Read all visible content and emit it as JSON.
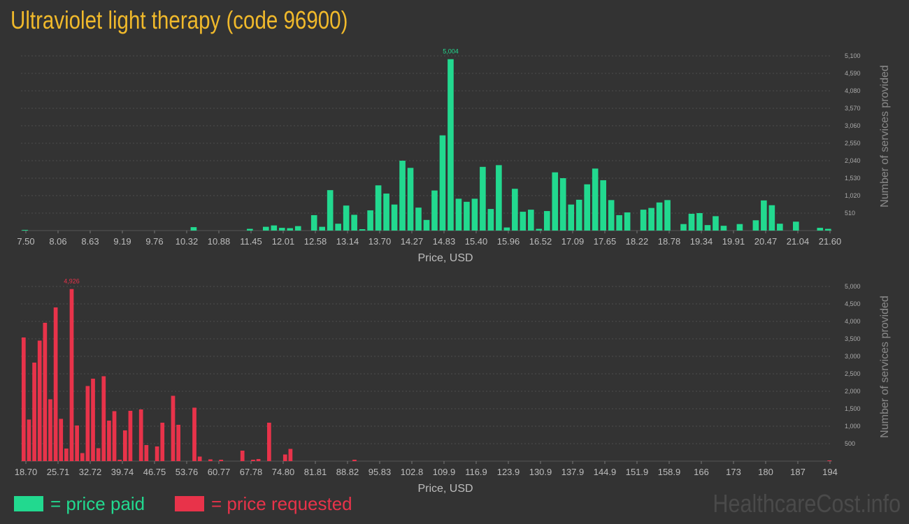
{
  "title": "Ultraviolet light therapy (code 96900)",
  "legend": {
    "paid_label": "= price paid",
    "requested_label": "= price requested"
  },
  "brand": "HealthcareCost.info",
  "colors": {
    "paid": "#22d98f",
    "requested": "#e8334a",
    "title": "#f0b92b",
    "background": "#333333"
  },
  "chart_data": [
    {
      "type": "bar",
      "title": "",
      "xlabel": "Price, USD",
      "ylabel": "Number of services provided",
      "x_tick_labels": [
        "7.50",
        "8.06",
        "8.63",
        "9.19",
        "9.76",
        "10.32",
        "10.88",
        "11.45",
        "12.01",
        "12.58",
        "13.14",
        "13.70",
        "14.27",
        "14.83",
        "15.40",
        "15.96",
        "16.52",
        "17.09",
        "17.65",
        "18.22",
        "18.78",
        "19.34",
        "19.91",
        "20.47",
        "21.04",
        "21.60"
      ],
      "y_ticks": [
        510,
        1020,
        1530,
        2040,
        2550,
        3060,
        3570,
        4080,
        4590,
        5100
      ],
      "y_tick_labels": [
        "510",
        "1,020",
        "1,530",
        "2,040",
        "2,550",
        "3,060",
        "3,570",
        "4,080",
        "4,590",
        "5,100"
      ],
      "ylim": [
        0,
        5100
      ],
      "peak_label": "5,004",
      "peak_index": 53,
      "grid": true,
      "values": [
        20,
        0,
        0,
        0,
        0,
        0,
        0,
        0,
        0,
        0,
        0,
        0,
        0,
        0,
        0,
        0,
        0,
        0,
        0,
        0,
        0,
        100,
        0,
        0,
        0,
        0,
        0,
        0,
        50,
        0,
        110,
        150,
        80,
        70,
        130,
        0,
        450,
        110,
        1180,
        200,
        730,
        460,
        40,
        590,
        1320,
        1080,
        760,
        2040,
        1830,
        670,
        310,
        1170,
        2780,
        5004,
        930,
        840,
        930,
        1860,
        630,
        1910,
        90,
        1220,
        550,
        610,
        50,
        570,
        1700,
        1530,
        760,
        900,
        1350,
        1810,
        1470,
        890,
        450,
        530,
        0,
        610,
        660,
        820,
        890,
        0,
        190,
        490,
        510,
        160,
        420,
        140,
        0,
        190,
        0,
        300,
        880,
        740,
        200,
        0,
        260,
        0,
        0,
        80,
        50
      ]
    },
    {
      "type": "bar",
      "title": "",
      "xlabel": "Price, USD",
      "ylabel": "Number of services provided",
      "x_tick_labels": [
        "18.70",
        "25.71",
        "32.72",
        "39.74",
        "46.75",
        "53.76",
        "60.77",
        "67.78",
        "74.80",
        "81.81",
        "88.82",
        "95.83",
        "102.8",
        "109.9",
        "116.9",
        "123.9",
        "130.9",
        "137.9",
        "144.9",
        "151.9",
        "158.9",
        "166",
        "173",
        "180",
        "187",
        "194"
      ],
      "y_ticks": [
        500,
        1000,
        1500,
        2000,
        2500,
        3000,
        3500,
        4000,
        4500,
        5000
      ],
      "y_tick_labels": [
        "500",
        "1,000",
        "1,500",
        "2,000",
        "2,500",
        "3,000",
        "3,500",
        "4,000",
        "4,500",
        "5,000"
      ],
      "ylim": [
        0,
        5000
      ],
      "peak_label": "4,926",
      "peak_index": 9,
      "grid": true,
      "values": [
        3540,
        1190,
        2820,
        3450,
        3960,
        1770,
        4400,
        1210,
        360,
        4926,
        1020,
        230,
        2150,
        2360,
        370,
        2430,
        1160,
        1430,
        40,
        880,
        1440,
        0,
        1480,
        460,
        0,
        420,
        1100,
        0,
        1870,
        1040,
        0,
        0,
        1530,
        130,
        0,
        50,
        0,
        40,
        0,
        0,
        0,
        300,
        0,
        40,
        60,
        0,
        1100,
        0,
        0,
        190,
        350,
        0,
        0,
        0,
        0,
        0,
        0,
        0,
        0,
        0,
        0,
        0,
        40,
        0,
        0,
        0,
        0,
        0,
        0,
        0,
        0,
        0,
        0,
        0,
        0,
        0,
        0,
        0,
        0,
        0,
        0,
        0,
        0,
        0,
        0,
        0,
        0,
        0,
        0,
        0,
        0,
        0,
        0,
        0,
        0,
        0,
        0,
        0,
        0,
        0,
        0,
        0,
        0,
        0,
        0,
        0,
        0,
        0,
        0,
        0,
        0,
        0,
        0,
        0,
        0,
        0,
        0,
        0,
        0,
        0,
        0,
        0,
        0,
        0,
        0,
        0,
        0,
        0,
        0,
        0,
        0,
        0,
        0,
        0,
        0,
        0,
        0,
        0,
        0,
        0,
        0,
        0,
        0,
        0,
        0,
        0,
        0,
        0,
        0,
        0,
        0,
        20
      ]
    }
  ]
}
